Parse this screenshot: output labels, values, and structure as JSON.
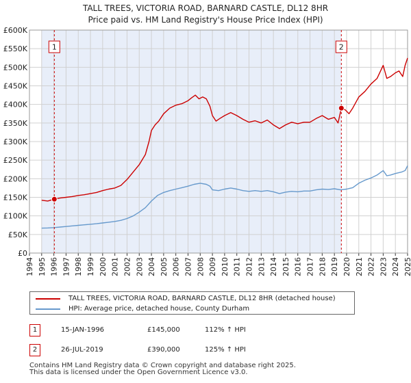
{
  "header": {
    "title": "TALL TREES, VICTORIA ROAD, BARNARD CASTLE, DL12 8HR",
    "subtitle": "Price paid vs. HM Land Registry's House Price Index (HPI)"
  },
  "colors": {
    "property_line": "#cc0000",
    "hpi_line": "#6699cc",
    "band": "#e8eef9",
    "grid": "#d0d0d0",
    "marker_line": "#cc0000"
  },
  "chart_data": {
    "type": "line",
    "title": "TALL TREES, VICTORIA ROAD, BARNARD CASTLE, DL12 8HR",
    "subtitle": "Price paid vs. HM Land Registry's House Price Index (HPI)",
    "xlim": [
      1994.0,
      2025.0
    ],
    "ylim": [
      0,
      600000
    ],
    "yticks": [
      0,
      50000,
      100000,
      150000,
      200000,
      250000,
      300000,
      350000,
      400000,
      450000,
      500000,
      550000,
      600000
    ],
    "ytick_labels": [
      "£0",
      "£50K",
      "£100K",
      "£150K",
      "£200K",
      "£250K",
      "£300K",
      "£350K",
      "£400K",
      "£450K",
      "£500K",
      "£550K",
      "£600K"
    ],
    "xticks": [
      1994,
      1995,
      1996,
      1997,
      1998,
      1999,
      2000,
      2001,
      2002,
      2003,
      2004,
      2005,
      2006,
      2007,
      2008,
      2009,
      2010,
      2011,
      2012,
      2013,
      2014,
      2015,
      2016,
      2017,
      2018,
      2019,
      2020,
      2021,
      2022,
      2023,
      2024,
      2025
    ],
    "grid": true,
    "shaded_period": [
      1995.0,
      2019.57
    ],
    "series": [
      {
        "name": "TALL TREES, VICTORIA ROAD, BARNARD CASTLE, DL12 8HR (detached house)",
        "color": "#cc0000",
        "points": [
          [
            1995.0,
            142000
          ],
          [
            1995.5,
            140000
          ],
          [
            1996.04,
            145000
          ],
          [
            1996.5,
            148000
          ],
          [
            1997.0,
            150000
          ],
          [
            1997.5,
            152000
          ],
          [
            1998.0,
            155000
          ],
          [
            1998.5,
            157000
          ],
          [
            1999.0,
            160000
          ],
          [
            1999.5,
            163000
          ],
          [
            2000.0,
            168000
          ],
          [
            2000.5,
            172000
          ],
          [
            2001.0,
            175000
          ],
          [
            2001.5,
            182000
          ],
          [
            2002.0,
            198000
          ],
          [
            2002.5,
            218000
          ],
          [
            2003.0,
            238000
          ],
          [
            2003.5,
            265000
          ],
          [
            2003.8,
            300000
          ],
          [
            2004.0,
            330000
          ],
          [
            2004.3,
            345000
          ],
          [
            2004.6,
            355000
          ],
          [
            2005.0,
            375000
          ],
          [
            2005.5,
            390000
          ],
          [
            2006.0,
            398000
          ],
          [
            2006.5,
            402000
          ],
          [
            2007.0,
            410000
          ],
          [
            2007.3,
            418000
          ],
          [
            2007.6,
            425000
          ],
          [
            2007.9,
            415000
          ],
          [
            2008.2,
            420000
          ],
          [
            2008.5,
            415000
          ],
          [
            2008.8,
            395000
          ],
          [
            2009.0,
            370000
          ],
          [
            2009.3,
            355000
          ],
          [
            2009.6,
            362000
          ],
          [
            2010.0,
            370000
          ],
          [
            2010.5,
            378000
          ],
          [
            2011.0,
            370000
          ],
          [
            2011.5,
            360000
          ],
          [
            2012.0,
            352000
          ],
          [
            2012.5,
            356000
          ],
          [
            2013.0,
            350000
          ],
          [
            2013.5,
            358000
          ],
          [
            2014.0,
            345000
          ],
          [
            2014.5,
            335000
          ],
          [
            2015.0,
            345000
          ],
          [
            2015.5,
            352000
          ],
          [
            2016.0,
            348000
          ],
          [
            2016.5,
            352000
          ],
          [
            2017.0,
            352000
          ],
          [
            2017.5,
            362000
          ],
          [
            2018.0,
            370000
          ],
          [
            2018.5,
            360000
          ],
          [
            2019.0,
            365000
          ],
          [
            2019.3,
            350000
          ],
          [
            2019.57,
            390000
          ],
          [
            2019.9,
            385000
          ],
          [
            2020.2,
            375000
          ],
          [
            2020.5,
            390000
          ],
          [
            2021.0,
            420000
          ],
          [
            2021.5,
            435000
          ],
          [
            2022.0,
            455000
          ],
          [
            2022.5,
            470000
          ],
          [
            2023.0,
            505000
          ],
          [
            2023.3,
            470000
          ],
          [
            2023.6,
            475000
          ],
          [
            2024.0,
            485000
          ],
          [
            2024.3,
            490000
          ],
          [
            2024.6,
            475000
          ],
          [
            2024.8,
            505000
          ],
          [
            2025.0,
            525000
          ]
        ]
      },
      {
        "name": "HPI: Average price, detached house, County Durham",
        "color": "#6699cc",
        "points": [
          [
            1995.0,
            67000
          ],
          [
            1995.5,
            67500
          ],
          [
            1996.0,
            68500
          ],
          [
            1996.5,
            70000
          ],
          [
            1997.0,
            71500
          ],
          [
            1997.5,
            73000
          ],
          [
            1998.0,
            74500
          ],
          [
            1998.5,
            76000
          ],
          [
            1999.0,
            77500
          ],
          [
            1999.5,
            79000
          ],
          [
            2000.0,
            81000
          ],
          [
            2000.5,
            83000
          ],
          [
            2001.0,
            85000
          ],
          [
            2001.5,
            88000
          ],
          [
            2002.0,
            93000
          ],
          [
            2002.5,
            100000
          ],
          [
            2003.0,
            110000
          ],
          [
            2003.5,
            122000
          ],
          [
            2004.0,
            140000
          ],
          [
            2004.5,
            155000
          ],
          [
            2005.0,
            163000
          ],
          [
            2005.5,
            168000
          ],
          [
            2006.0,
            172000
          ],
          [
            2006.5,
            176000
          ],
          [
            2007.0,
            180000
          ],
          [
            2007.5,
            185000
          ],
          [
            2008.0,
            188000
          ],
          [
            2008.5,
            185000
          ],
          [
            2008.8,
            180000
          ],
          [
            2009.0,
            170000
          ],
          [
            2009.5,
            168000
          ],
          [
            2010.0,
            172000
          ],
          [
            2010.5,
            175000
          ],
          [
            2011.0,
            172000
          ],
          [
            2011.5,
            168000
          ],
          [
            2012.0,
            166000
          ],
          [
            2012.5,
            168000
          ],
          [
            2013.0,
            166000
          ],
          [
            2013.5,
            168000
          ],
          [
            2014.0,
            165000
          ],
          [
            2014.5,
            160000
          ],
          [
            2015.0,
            164000
          ],
          [
            2015.5,
            166000
          ],
          [
            2016.0,
            165000
          ],
          [
            2016.5,
            167000
          ],
          [
            2017.0,
            167000
          ],
          [
            2017.5,
            170000
          ],
          [
            2018.0,
            172000
          ],
          [
            2018.5,
            171000
          ],
          [
            2019.0,
            173000
          ],
          [
            2019.5,
            170000
          ],
          [
            2020.0,
            172000
          ],
          [
            2020.5,
            176000
          ],
          [
            2021.0,
            188000
          ],
          [
            2021.5,
            196000
          ],
          [
            2022.0,
            202000
          ],
          [
            2022.5,
            210000
          ],
          [
            2023.0,
            222000
          ],
          [
            2023.3,
            208000
          ],
          [
            2023.6,
            210000
          ],
          [
            2024.0,
            214000
          ],
          [
            2024.5,
            218000
          ],
          [
            2024.8,
            222000
          ],
          [
            2025.0,
            235000
          ]
        ]
      }
    ],
    "sales": [
      {
        "id": "1",
        "x": 1996.04,
        "price": 145000,
        "date": "15-JAN-1996",
        "price_label": "£145,000",
        "hpi_label": "112% ↑ HPI"
      },
      {
        "id": "2",
        "x": 2019.57,
        "price": 390000,
        "date": "26-JUL-2019",
        "price_label": "£390,000",
        "hpi_label": "125% ↑ HPI"
      }
    ]
  },
  "legend": {
    "property_label": "TALL TREES, VICTORIA ROAD, BARNARD CASTLE, DL12 8HR (detached house)",
    "hpi_label": "HPI: Average price, detached house, County Durham"
  },
  "footer": {
    "line1": "Contains HM Land Registry data © Crown copyright and database right 2025.",
    "line2": "This data is licensed under the Open Government Licence v3.0."
  }
}
